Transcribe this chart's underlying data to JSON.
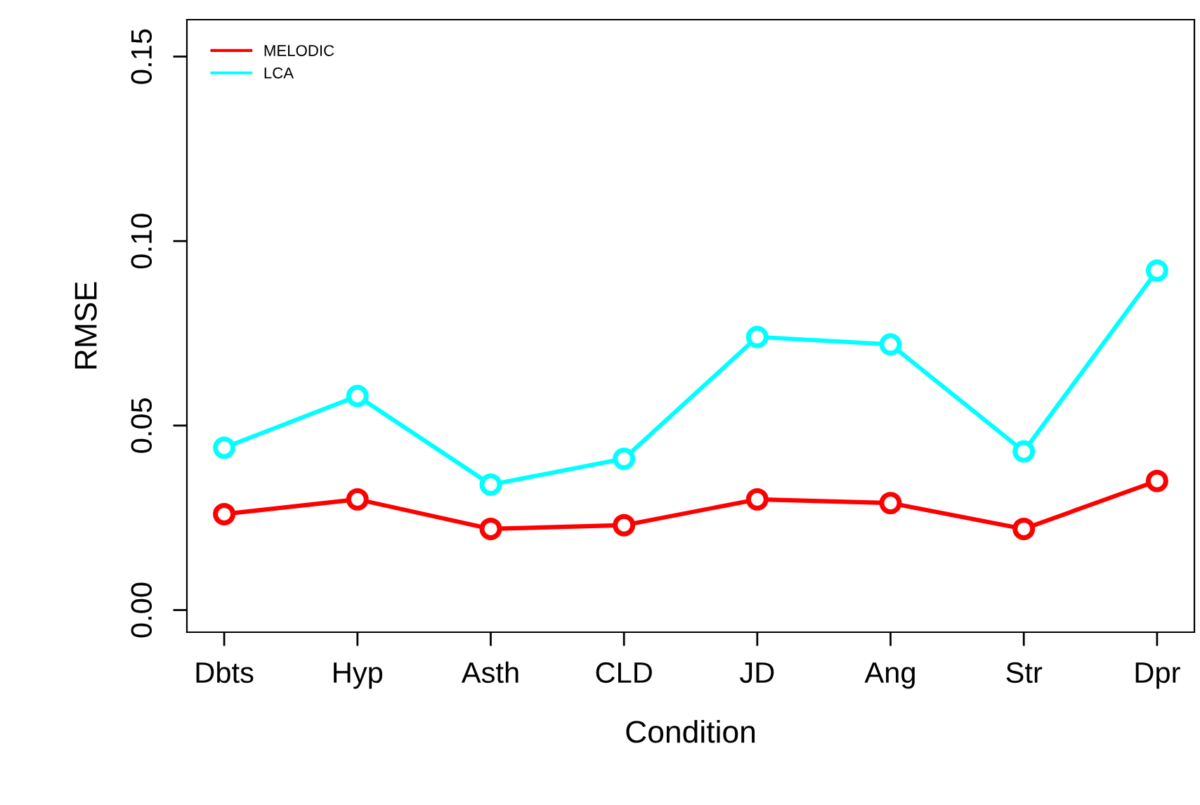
{
  "chart_data": {
    "type": "line",
    "xlabel": "Condition",
    "ylabel": "RMSE",
    "categories": [
      "Dbts",
      "Hyp",
      "Asth",
      "CLD",
      "JD",
      "Ang",
      "Str",
      "Dpr"
    ],
    "series": [
      {
        "name": "MELODIC",
        "color": "#ff0000",
        "values": [
          0.026,
          0.03,
          0.022,
          0.023,
          0.03,
          0.029,
          0.022,
          0.035
        ]
      },
      {
        "name": "LCA",
        "color": "#00ffff",
        "values": [
          0.044,
          0.058,
          0.034,
          0.041,
          0.074,
          0.072,
          0.043,
          0.092
        ]
      }
    ],
    "ylim": [
      -0.006,
      0.16
    ],
    "yticks": [
      {
        "value": 0,
        "label": "0.00"
      },
      {
        "value": 0.05,
        "label": "0.05"
      },
      {
        "value": 0.1,
        "label": "0.10"
      },
      {
        "value": 0.15,
        "label": "0.15"
      }
    ],
    "grid": false,
    "legend": "top left",
    "marker": "circle",
    "line_style": "solid"
  }
}
